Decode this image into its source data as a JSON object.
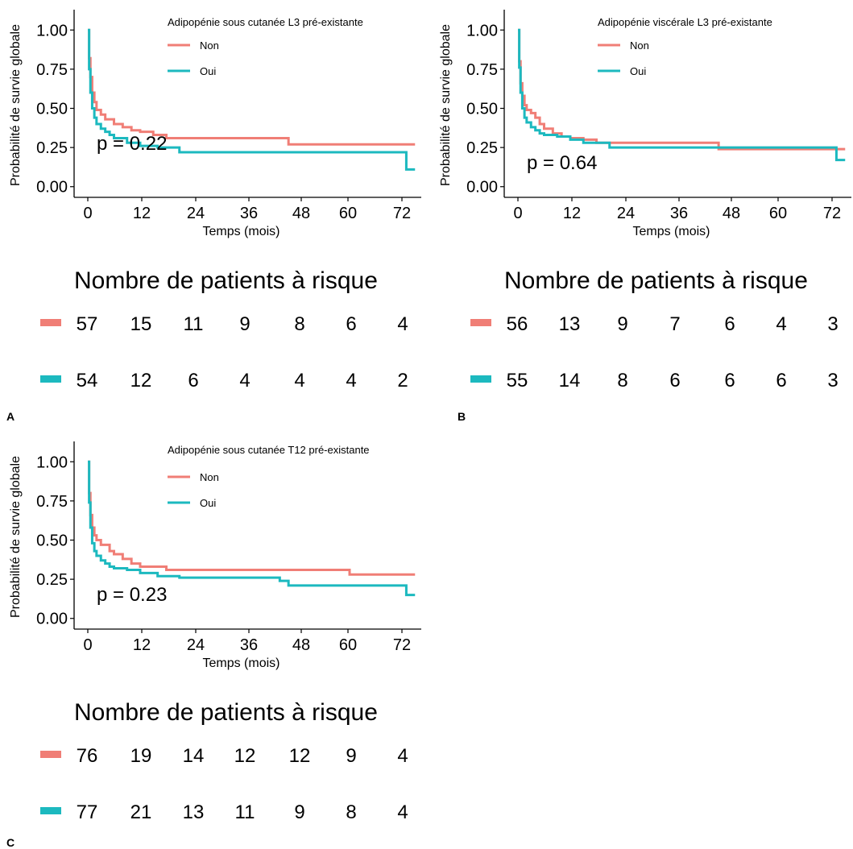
{
  "colors": {
    "non": "#F07E76",
    "oui": "#1CB9BF",
    "axis": "#000000"
  },
  "chart_data": [
    {
      "type": "line",
      "panel": "A",
      "legend_title": "Adipopénie sous cutanée L3 pré-existante",
      "legend_placement": "top-center",
      "xlabel": "Temps (mois)",
      "ylabel": "Probabilité de survie globale",
      "xlim": [
        0,
        75
      ],
      "ylim": [
        0,
        1
      ],
      "x_ticks": [
        "0",
        "12",
        "24",
        "36",
        "48",
        "60",
        "72"
      ],
      "y_ticks": [
        "0.00",
        "0.25",
        "0.50",
        "0.75",
        "1.00"
      ],
      "pvalue": "p = 0.22",
      "grid": false,
      "series": [
        {
          "name": "Non",
          "points": [
            [
              0,
              1.0
            ],
            [
              0.3,
              0.82
            ],
            [
              0.6,
              0.7
            ],
            [
              1,
              0.6
            ],
            [
              1.5,
              0.54
            ],
            [
              2,
              0.49
            ],
            [
              3,
              0.46
            ],
            [
              4,
              0.43
            ],
            [
              6,
              0.4
            ],
            [
              8,
              0.38
            ],
            [
              10,
              0.36
            ],
            [
              12,
              0.35
            ],
            [
              15,
              0.33
            ],
            [
              18,
              0.31
            ],
            [
              46,
              0.27
            ],
            [
              75,
              0.27
            ]
          ]
        },
        {
          "name": "Oui",
          "points": [
            [
              0,
              1.0
            ],
            [
              0.3,
              0.75
            ],
            [
              0.6,
              0.6
            ],
            [
              1,
              0.5
            ],
            [
              1.5,
              0.44
            ],
            [
              2,
              0.4
            ],
            [
              3,
              0.37
            ],
            [
              4,
              0.35
            ],
            [
              5,
              0.33
            ],
            [
              6,
              0.31
            ],
            [
              9,
              0.28
            ],
            [
              12,
              0.26
            ],
            [
              16,
              0.25
            ],
            [
              21,
              0.22
            ],
            [
              73,
              0.11
            ],
            [
              75,
              0.11
            ]
          ]
        }
      ],
      "risk_table": {
        "title": "Nombre de patients à risque",
        "rows": [
          {
            "name": "Non",
            "values": [
              "57",
              "15",
              "11",
              "9",
              "8",
              "6",
              "4"
            ]
          },
          {
            "name": "Oui",
            "values": [
              "54",
              "12",
              "6",
              "4",
              "4",
              "4",
              "2"
            ]
          }
        ]
      }
    },
    {
      "type": "line",
      "panel": "B",
      "legend_title": "Adipopénie viscérale L3 pré-existante",
      "legend_placement": "top-center",
      "xlabel": "Temps (mois)",
      "ylabel": "Probabilité de survie globale",
      "xlim": [
        0,
        75
      ],
      "ylim": [
        0,
        1
      ],
      "x_ticks": [
        "0",
        "12",
        "24",
        "36",
        "48",
        "60",
        "72"
      ],
      "y_ticks": [
        "0.00",
        "0.25",
        "0.50",
        "0.75",
        "1.00"
      ],
      "pvalue": "p = 0.64",
      "grid": false,
      "series": [
        {
          "name": "Non",
          "points": [
            [
              0,
              1.0
            ],
            [
              0.3,
              0.8
            ],
            [
              0.6,
              0.66
            ],
            [
              1,
              0.58
            ],
            [
              1.5,
              0.52
            ],
            [
              2,
              0.49
            ],
            [
              3,
              0.47
            ],
            [
              4,
              0.44
            ],
            [
              5,
              0.4
            ],
            [
              6,
              0.37
            ],
            [
              8,
              0.34
            ],
            [
              10,
              0.32
            ],
            [
              12,
              0.31
            ],
            [
              15,
              0.3
            ],
            [
              18,
              0.28
            ],
            [
              46,
              0.24
            ],
            [
              75,
              0.24
            ]
          ]
        },
        {
          "name": "Oui",
          "points": [
            [
              0,
              1.0
            ],
            [
              0.3,
              0.76
            ],
            [
              0.6,
              0.6
            ],
            [
              1,
              0.5
            ],
            [
              1.5,
              0.44
            ],
            [
              2,
              0.41
            ],
            [
              3,
              0.38
            ],
            [
              4,
              0.36
            ],
            [
              5,
              0.34
            ],
            [
              6,
              0.33
            ],
            [
              9,
              0.32
            ],
            [
              12,
              0.3
            ],
            [
              15,
              0.28
            ],
            [
              21,
              0.25
            ],
            [
              73,
              0.17
            ],
            [
              75,
              0.17
            ]
          ]
        }
      ],
      "risk_table": {
        "title": "Nombre de patients à risque",
        "rows": [
          {
            "name": "Non",
            "values": [
              "56",
              "13",
              "9",
              "7",
              "6",
              "4",
              "3"
            ]
          },
          {
            "name": "Oui",
            "values": [
              "55",
              "14",
              "8",
              "6",
              "6",
              "6",
              "3"
            ]
          }
        ]
      }
    },
    {
      "type": "line",
      "panel": "C",
      "legend_title": "Adipopénie sous cutanée T12 pré-existante",
      "legend_placement": "top-center",
      "xlabel": "Temps (mois)",
      "ylabel": "Probabilité de survie globale",
      "xlim": [
        0,
        75
      ],
      "ylim": [
        0,
        1
      ],
      "x_ticks": [
        "0",
        "12",
        "24",
        "36",
        "48",
        "60",
        "72"
      ],
      "y_ticks": [
        "0.00",
        "0.25",
        "0.50",
        "0.75",
        "1.00"
      ],
      "pvalue": "p = 0.23",
      "grid": false,
      "series": [
        {
          "name": "Non",
          "points": [
            [
              0,
              1.0
            ],
            [
              0.3,
              0.8
            ],
            [
              0.6,
              0.66
            ],
            [
              1,
              0.58
            ],
            [
              1.5,
              0.53
            ],
            [
              2,
              0.5
            ],
            [
              3,
              0.47
            ],
            [
              5,
              0.43
            ],
            [
              6,
              0.41
            ],
            [
              8,
              0.38
            ],
            [
              10,
              0.35
            ],
            [
              12,
              0.33
            ],
            [
              18,
              0.31
            ],
            [
              60,
              0.28
            ],
            [
              75,
              0.28
            ]
          ]
        },
        {
          "name": "Oui",
          "points": [
            [
              0,
              1.0
            ],
            [
              0.3,
              0.74
            ],
            [
              0.6,
              0.58
            ],
            [
              1,
              0.48
            ],
            [
              1.5,
              0.43
            ],
            [
              2,
              0.4
            ],
            [
              3,
              0.37
            ],
            [
              4,
              0.35
            ],
            [
              5,
              0.33
            ],
            [
              6,
              0.32
            ],
            [
              9,
              0.31
            ],
            [
              12,
              0.29
            ],
            [
              16,
              0.27
            ],
            [
              21,
              0.26
            ],
            [
              44,
              0.24
            ],
            [
              46,
              0.21
            ],
            [
              73,
              0.15
            ],
            [
              75,
              0.15
            ]
          ]
        }
      ],
      "risk_table": {
        "title": "Nombre de patients à risque",
        "rows": [
          {
            "name": "Non",
            "values": [
              "76",
              "19",
              "14",
              "12",
              "12",
              "9",
              "4"
            ]
          },
          {
            "name": "Oui",
            "values": [
              "77",
              "21",
              "13",
              "11",
              "9",
              "8",
              "4"
            ]
          }
        ]
      }
    }
  ]
}
